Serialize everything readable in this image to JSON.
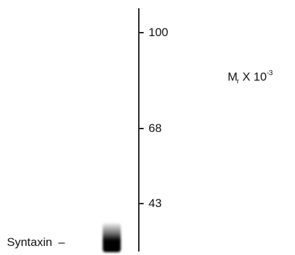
{
  "markers": {
    "ticks": [
      {
        "label": "100"
      },
      {
        "label": "68"
      },
      {
        "label": "43"
      }
    ]
  },
  "mr_label": {
    "base": "M",
    "subscript": "r",
    "middle": " X 10",
    "superscript": "-3"
  },
  "band": {
    "label": "Syntaxin",
    "dash": "–"
  }
}
